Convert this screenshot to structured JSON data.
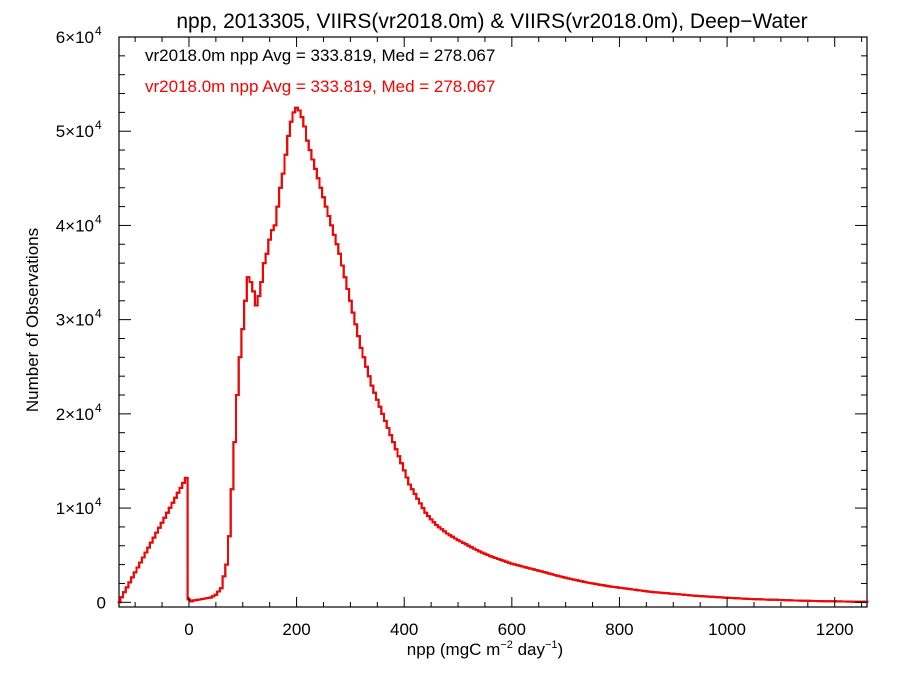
{
  "chart_data": {
    "type": "line",
    "title": "npp, 2013305, VIIRS(vr2018.0m) & VIIRS(vr2018.0m), Deep−Water",
    "xlabel": {
      "prefix": "npp (mgC m",
      "exp1": "−2",
      "middle": " day",
      "exp2": "−1",
      "suffix": ")"
    },
    "ylabel": "Number of Observations",
    "xlim": [
      -130,
      1260
    ],
    "ylim": [
      -500,
      60000
    ],
    "x_ticks": [
      0,
      200,
      400,
      600,
      800,
      1000,
      1200
    ],
    "y_ticks": [
      {
        "value": 0,
        "label": "0",
        "exp": ""
      },
      {
        "value": 10000,
        "label": "1×10",
        "exp": "4"
      },
      {
        "value": 20000,
        "label": "2×10",
        "exp": "4"
      },
      {
        "value": 30000,
        "label": "3×10",
        "exp": "4"
      },
      {
        "value": 40000,
        "label": "4×10",
        "exp": "4"
      },
      {
        "value": 50000,
        "label": "5×10",
        "exp": "4"
      },
      {
        "value": 60000,
        "label": "6×10",
        "exp": "4"
      }
    ],
    "grid": false,
    "annotations": [
      {
        "text": "vr2018.0m npp Avg = 333.819, Med = 278.067",
        "color": "#000000"
      },
      {
        "text": "vr2018.0m npp Avg = 333.819, Med = 278.067",
        "color": "#ff0000"
      }
    ],
    "colors": {
      "series_a": "#000000",
      "series_b": "#ff0000"
    },
    "step": 5,
    "series": [
      {
        "x": [
          -130,
          -5,
          0,
          5,
          10,
          20,
          30,
          40,
          50,
          60,
          70,
          75,
          80,
          85,
          90,
          95,
          100,
          105,
          110,
          115,
          120,
          125,
          130,
          135,
          140,
          145,
          150,
          155,
          160,
          165,
          170,
          175,
          180,
          185,
          190,
          195,
          200,
          205,
          210,
          215,
          220,
          225,
          230,
          235,
          240,
          245,
          250,
          255,
          260,
          265,
          270,
          280,
          290,
          300,
          310,
          320,
          330,
          340,
          350,
          360,
          370,
          380,
          390,
          400,
          410,
          420,
          430,
          440,
          450,
          460,
          480,
          500,
          520,
          540,
          560,
          580,
          600,
          620,
          640,
          660,
          680,
          700,
          720,
          740,
          760,
          780,
          800,
          820,
          840,
          860,
          880,
          900,
          920,
          940,
          960,
          980,
          1000,
          1020,
          1040,
          1060,
          1080,
          1100,
          1120,
          1140,
          1160,
          1180,
          1200,
          1220,
          1240,
          1260
        ],
        "y": [
          0,
          13200,
          300,
          100,
          200,
          300,
          400,
          500,
          800,
          1500,
          4000,
          7000,
          12000,
          17000,
          22000,
          26000,
          29000,
          32000,
          34500,
          34000,
          33000,
          31500,
          32500,
          34000,
          36000,
          37000,
          38500,
          39500,
          40000,
          42000,
          44000,
          45500,
          47500,
          49500,
          51000,
          52000,
          52500,
          52200,
          51500,
          50500,
          49000,
          48000,
          47000,
          46000,
          45000,
          44000,
          43000,
          42000,
          41000,
          40000,
          39000,
          37000,
          34500,
          32000,
          29500,
          27000,
          25000,
          23000,
          21500,
          20000,
          18500,
          17000,
          15500,
          14000,
          12500,
          11500,
          10500,
          9500,
          8800,
          8200,
          7300,
          6600,
          6000,
          5400,
          4900,
          4500,
          4100,
          3800,
          3500,
          3200,
          2900,
          2600,
          2350,
          2100,
          1900,
          1700,
          1550,
          1400,
          1250,
          1100,
          1000,
          900,
          800,
          700,
          620,
          550,
          480,
          420,
          360,
          320,
          280,
          240,
          200,
          170,
          140,
          120,
          100,
          80,
          60,
          50
        ]
      }
    ]
  }
}
